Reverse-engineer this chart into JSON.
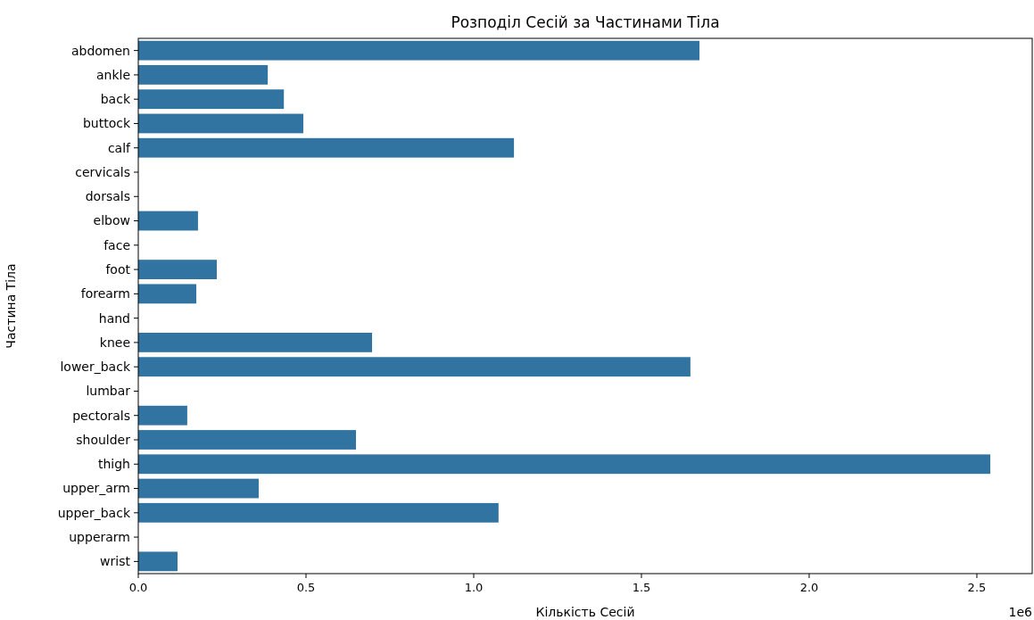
{
  "chart_data": {
    "type": "bar",
    "orientation": "horizontal",
    "title": "Розподіл Сесій за Частинами Тіла",
    "xlabel": "Кількість Сесій",
    "ylabel": "Частина Тіла",
    "categories": [
      "abdomen",
      "ankle",
      "back",
      "buttock",
      "calf",
      "cervicals",
      "dorsals",
      "elbow",
      "face",
      "foot",
      "forearm",
      "hand",
      "knee",
      "lower_back",
      "lumbar",
      "pectorals",
      "shoulder",
      "thigh",
      "upper_arm",
      "upper_back",
      "upperarm",
      "wrist"
    ],
    "values": [
      1.673,
      0.386,
      0.434,
      0.492,
      1.12,
      0,
      0,
      0.178,
      0,
      0.234,
      0.173,
      0,
      0.697,
      1.646,
      0,
      0.146,
      0.649,
      2.54,
      0.359,
      1.074,
      0,
      0.117
    ],
    "color": "#3274a1",
    "xlim": [
      0,
      2.665
    ],
    "xticks": [
      {
        "value": 0,
        "label": "0.0"
      },
      0.5,
      {
        "value": 1,
        "label": "1.0"
      },
      1.5,
      {
        "value": 2,
        "label": "2.0"
      },
      2.5
    ],
    "annotations": [
      "1e6"
    ]
  }
}
